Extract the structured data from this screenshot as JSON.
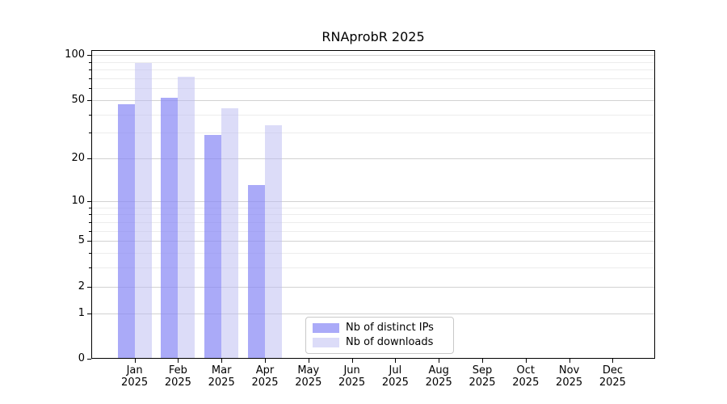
{
  "title": "RNAprobR 2025",
  "legend": {
    "items": [
      {
        "label": "Nb of distinct IPs",
        "swatch_color": "#aaaaf8"
      },
      {
        "label": "Nb of downloads",
        "swatch_color": "#dcdcf8"
      }
    ]
  },
  "chart_data": {
    "type": "bar",
    "title": "RNAprobR 2025",
    "categories": [
      "Jan 2025",
      "Feb 2025",
      "Mar 2025",
      "Apr 2025",
      "May 2025",
      "Jun 2025",
      "Jul 2025",
      "Aug 2025",
      "Sep 2025",
      "Oct 2025",
      "Nov 2025",
      "Dec 2025"
    ],
    "month_labels": [
      "Jan",
      "Feb",
      "Mar",
      "Apr",
      "May",
      "Jun",
      "Jul",
      "Aug",
      "Sep",
      "Oct",
      "Nov",
      "Dec"
    ],
    "year_label": "2025",
    "series": [
      {
        "name": "Nb of distinct IPs",
        "fill": "rgba(134,134,245,0.7)",
        "legend_color": "#aaaaf8",
        "values": [
          47,
          52,
          29,
          13,
          null,
          null,
          null,
          null,
          null,
          null,
          null,
          null
        ]
      },
      {
        "name": "Nb of downloads",
        "fill": "rgba(185,185,241,0.5)",
        "legend_color": "#dcdcf8",
        "values": [
          89,
          72,
          44,
          34,
          null,
          null,
          null,
          null,
          null,
          null,
          null,
          null
        ]
      }
    ],
    "yscale": "log1p",
    "y_ticks": [
      0,
      1,
      2,
      5,
      10,
      20,
      50,
      100
    ],
    "y_minor_ticks": [
      3,
      4,
      6,
      7,
      8,
      9,
      30,
      40,
      60,
      70,
      80,
      90
    ],
    "ylim": [
      0,
      108
    ],
    "xlabel": "",
    "ylabel": "",
    "grid": "horizontal",
    "legend_position": "lower-center-inside",
    "colors": {
      "grid_major": "#d2d2d2",
      "grid_minor": "#ececec",
      "axis": "#000000",
      "text": "#000000",
      "background": "#ffffff"
    }
  }
}
